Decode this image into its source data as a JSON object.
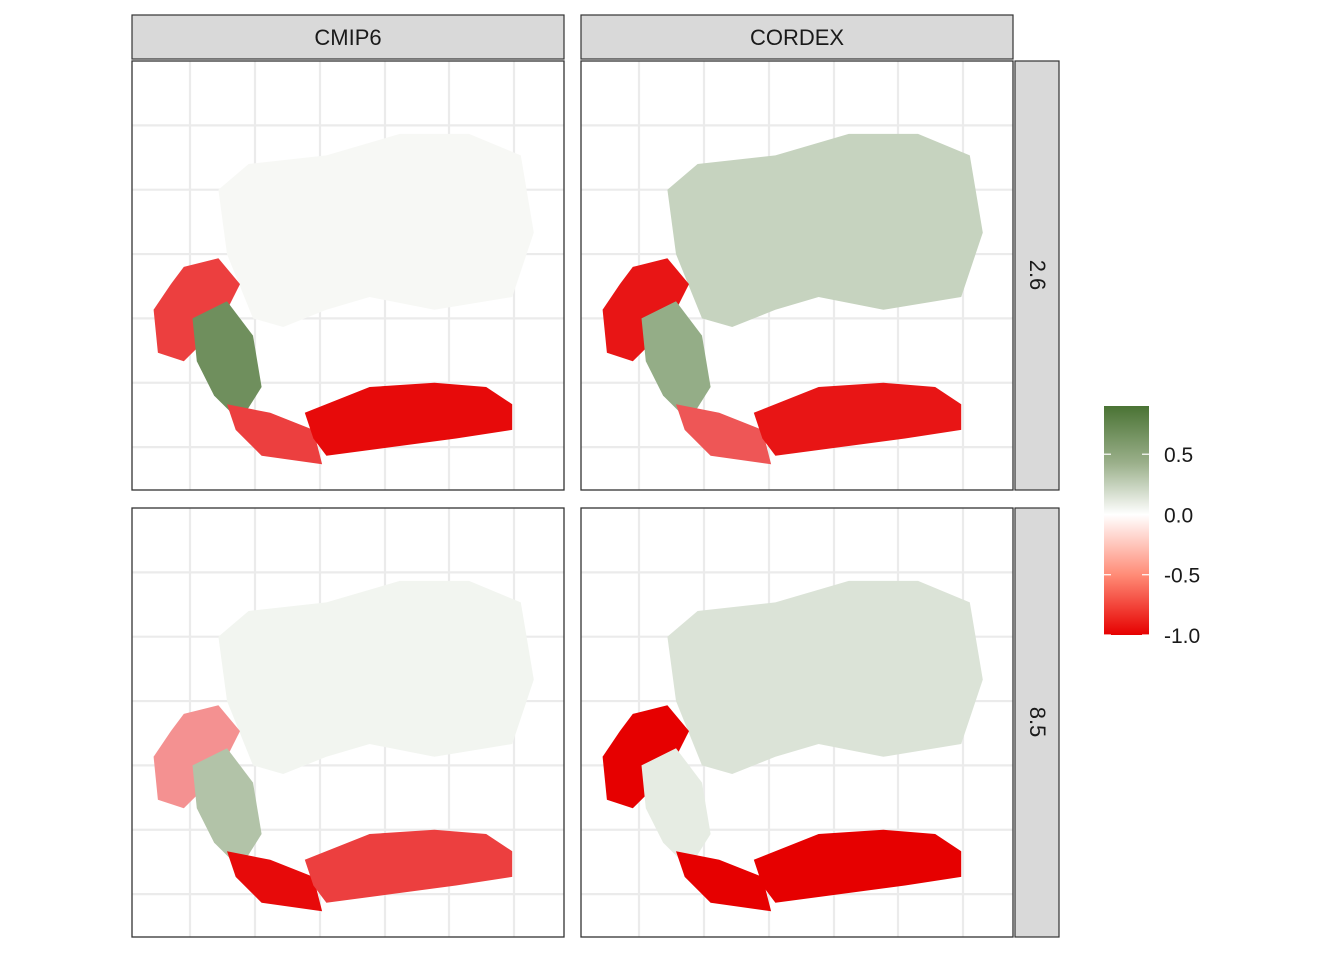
{
  "chart_data": {
    "type": "heatmap",
    "columns": [
      "CMIP6",
      "CORDEX"
    ],
    "rows": [
      "2.6",
      "8.5"
    ],
    "legend": {
      "placement": "right",
      "min": -1.0,
      "max": 0.9,
      "breaks": [
        {
          "value": 0.5,
          "label": "0.5"
        },
        {
          "value": 0.0,
          "label": "0.0"
        },
        {
          "value": -0.5,
          "label": "-0.5"
        },
        {
          "value": -1.0,
          "label": "-1.0"
        }
      ],
      "colors": {
        "low": "#e60000",
        "mid": "#ffffff",
        "high": "#4a7334"
      }
    },
    "grid": true,
    "panels": [
      {
        "column": "CMIP6",
        "row": "2.6",
        "north_value": 0.03,
        "west_coast_value": -0.7,
        "west_inland_value": 0.7,
        "south_coast_value": -0.95,
        "south_coast_east_value": -0.7
      },
      {
        "column": "CORDEX",
        "row": "2.6",
        "north_value": 0.25,
        "west_coast_value": -0.9,
        "west_inland_value": 0.5,
        "south_coast_value": -0.9,
        "south_coast_east_value": -0.6
      },
      {
        "column": "CMIP6",
        "row": "8.5",
        "north_value": 0.05,
        "west_coast_value": -0.35,
        "west_inland_value": 0.35,
        "south_coast_value": -0.7,
        "south_coast_east_value": -0.95
      },
      {
        "column": "CORDEX",
        "row": "8.5",
        "north_value": 0.15,
        "west_coast_value": -1.0,
        "west_inland_value": 0.1,
        "south_coast_value": -1.0,
        "south_coast_east_value": -1.0
      }
    ]
  }
}
